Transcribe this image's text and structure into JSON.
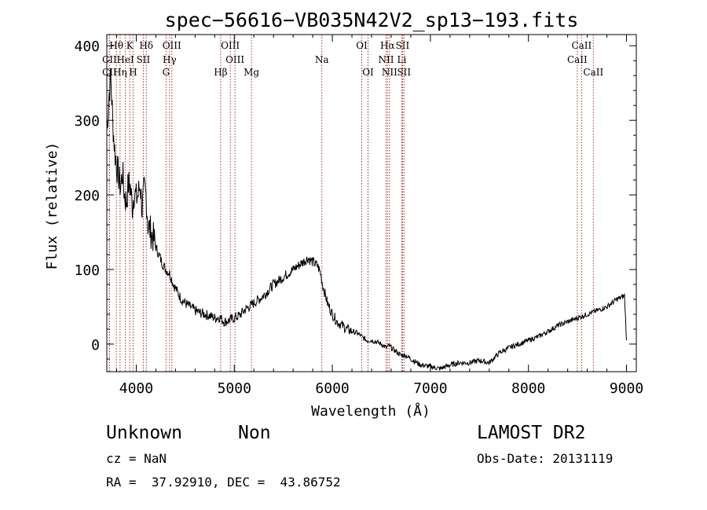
{
  "chart_data": {
    "type": "line",
    "title": "spec−56616−VB035N42V2_sp13−193.fits",
    "xlabel": "Wavelength (Å)",
    "ylabel": "Flux (relative)",
    "xlim": [
      3700,
      9100
    ],
    "ylim": [
      -37,
      415
    ],
    "xticks": [
      4000,
      5000,
      6000,
      7000,
      8000,
      9000
    ],
    "yticks": [
      0,
      100,
      200,
      300,
      400
    ],
    "grid": false,
    "series": [
      {
        "x": [
          3700,
          3720,
          3740,
          3760,
          3780,
          3800,
          3820,
          3840,
          3860,
          3880,
          3900,
          3920,
          3940,
          3960,
          3980,
          4000,
          4020,
          4040,
          4060,
          4080,
          4100,
          4120,
          4150,
          4180,
          4200,
          4230,
          4260,
          4300,
          4340,
          4380,
          4420,
          4460,
          4500,
          4550,
          4600,
          4650,
          4700,
          4750,
          4800,
          4850,
          4900,
          4950,
          5000,
          5050,
          5100,
          5150,
          5200,
          5300,
          5400,
          5500,
          5600,
          5650,
          5700,
          5750,
          5800,
          5850,
          5880,
          5900,
          5920,
          5950,
          6000,
          6050,
          6100,
          6150,
          6200,
          6250,
          6300,
          6350,
          6400,
          6450,
          6500,
          6550,
          6580,
          6600,
          6650,
          6700,
          6750,
          6800,
          6900,
          7000,
          7100,
          7200,
          7300,
          7400,
          7500,
          7600,
          7700,
          7800,
          7900,
          8000,
          8100,
          8200,
          8300,
          8400,
          8500,
          8600,
          8700,
          8800,
          8900,
          8950,
          8980,
          9000
        ],
        "y": [
          285,
          330,
          360,
          300,
          260,
          240,
          225,
          210,
          230,
          200,
          190,
          215,
          210,
          185,
          205,
          195,
          200,
          215,
          180,
          205,
          200,
          160,
          150,
          140,
          130,
          120,
          110,
          100,
          95,
          80,
          70,
          60,
          55,
          50,
          45,
          42,
          40,
          38,
          35,
          36,
          30,
          32,
          35,
          38,
          45,
          50,
          55,
          65,
          80,
          90,
          100,
          105,
          110,
          115,
          110,
          105,
          95,
          80,
          70,
          55,
          40,
          30,
          25,
          20,
          17,
          15,
          10,
          5,
          5,
          3,
          0,
          -5,
          -2,
          -5,
          -10,
          -15,
          -15,
          -20,
          -28,
          -30,
          -33,
          -28,
          -25,
          -25,
          -22,
          -25,
          -12,
          -5,
          0,
          5,
          10,
          17,
          25,
          30,
          35,
          40,
          45,
          50,
          60,
          63,
          65,
          5
        ]
      }
    ],
    "spectral_lines": [
      {
        "label": "Hθ",
        "x": 3797,
        "row": 0
      },
      {
        "label": "K",
        "x": 3934,
        "row": 0
      },
      {
        "label": "Hδ",
        "x": 4102,
        "row": 0
      },
      {
        "label": "OIII",
        "x": 4363,
        "row": 0
      },
      {
        "label": "OIII",
        "x": 4959,
        "row": 0
      },
      {
        "label": "OI",
        "x": 6300,
        "row": 0
      },
      {
        "label": "Hα",
        "x": 6563,
        "row": 0
      },
      {
        "label": "SII",
        "x": 6716,
        "row": 0
      },
      {
        "label": "CaII",
        "x": 8542,
        "row": 0
      },
      {
        "label": "CII",
        "x": 3727,
        "row": 1
      },
      {
        "label": "HeI",
        "x": 3889,
        "row": 1
      },
      {
        "label": "SII",
        "x": 4072,
        "row": 1
      },
      {
        "label": "Hγ",
        "x": 4340,
        "row": 1
      },
      {
        "label": "OIII",
        "x": 5007,
        "row": 1
      },
      {
        "label": "Na",
        "x": 5893,
        "row": 1
      },
      {
        "label": "NII",
        "x": 6548,
        "row": 1
      },
      {
        "label": "Li",
        "x": 6708,
        "row": 1
      },
      {
        "label": "CaII",
        "x": 8498,
        "row": 1
      },
      {
        "label": "CII",
        "x": 3727,
        "row": 2
      },
      {
        "label": "Hη",
        "x": 3835,
        "row": 2
      },
      {
        "label": "H",
        "x": 3968,
        "row": 2
      },
      {
        "label": "G",
        "x": 4304,
        "row": 2
      },
      {
        "label": "Hβ",
        "x": 4861,
        "row": 2
      },
      {
        "label": "Mg",
        "x": 5175,
        "row": 2
      },
      {
        "label": "OI",
        "x": 6364,
        "row": 2
      },
      {
        "label": "NII",
        "x": 6583,
        "row": 2
      },
      {
        "label": "SII",
        "x": 6731,
        "row": 2
      },
      {
        "label": "CaII",
        "x": 8662,
        "row": 2
      }
    ],
    "colors": {
      "spectrum": "#000000",
      "line_marker": "#b03030",
      "axes": "#000000"
    }
  },
  "info": {
    "class": "Unknown",
    "subclass": "Non",
    "survey": "LAMOST DR2",
    "cz": "cz = NaN",
    "obs_date": "Obs-Date: 20131119",
    "coords": "RA =  37.92910, DEC =  43.86752"
  }
}
